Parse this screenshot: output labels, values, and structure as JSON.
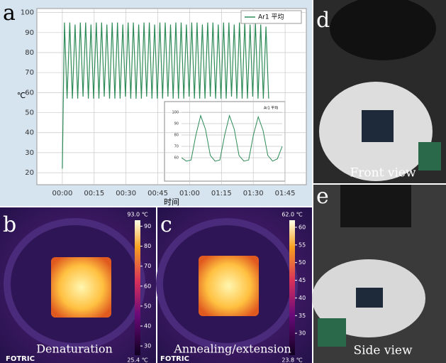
{
  "panel_labels": [
    "a",
    "b",
    "c",
    "d",
    "e"
  ],
  "chart_data": [
    {
      "type": "line",
      "ylabel": "℃",
      "xlabel": "时间",
      "x": [
        0,
        0.5,
        1,
        2.25,
        3.5,
        4.75,
        6,
        7.25,
        8.5,
        9.75,
        11,
        12.25,
        13.5,
        14.75,
        16,
        17.25,
        18.5,
        19.75,
        21,
        22.25,
        23.5,
        24.75,
        26,
        27.25,
        28.5,
        29.75,
        31,
        32.25,
        33.5,
        34.75,
        36,
        37.25,
        38.5,
        39.75,
        41,
        42.25,
        43.5,
        44.75,
        46,
        47.25,
        48.5,
        49.75,
        51,
        52.25,
        53.5,
        54.75,
        56,
        57.25,
        58.5,
        59.75,
        61,
        62.25,
        63.5,
        64.75,
        66,
        67.25,
        68.5,
        69.75,
        71,
        72.25,
        73.5,
        74.75,
        76,
        77.25,
        78.5,
        79.75,
        81,
        82.25,
        83.5,
        84.75,
        86,
        87.25,
        88.5,
        89.75,
        91,
        92.25,
        93.5,
        94.75,
        96,
        97.25
      ],
      "series": [
        {
          "name": "Ar1 平均",
          "color": "#2e8b57",
          "values": [
            22,
            60,
            95,
            57,
            95,
            57,
            94,
            57,
            95,
            58,
            95,
            57,
            94,
            57,
            95,
            57,
            95,
            58,
            94,
            57,
            95,
            57,
            95,
            57,
            94,
            58,
            95,
            57,
            95,
            57,
            94,
            57,
            95,
            58,
            95,
            57,
            94,
            57,
            95,
            57,
            95,
            58,
            94,
            57,
            95,
            57,
            95,
            57,
            94,
            58,
            95,
            57,
            95,
            57,
            94,
            57,
            95,
            58,
            95,
            57,
            94,
            57,
            95,
            57,
            95,
            58,
            94,
            57,
            95,
            57,
            95,
            57,
            94,
            58,
            95,
            57,
            94,
            57,
            93,
            57
          ]
        }
      ],
      "xlim": [
        -12,
        115
      ],
      "ylim": [
        14,
        102
      ],
      "xticks": [
        {
          "value": 0,
          "label": "00:00"
        },
        {
          "value": 15,
          "label": "00:15"
        },
        {
          "value": 30,
          "label": "00:30"
        },
        {
          "value": 45,
          "label": "00:45"
        },
        {
          "value": 60,
          "label": "01:00"
        },
        {
          "value": 75,
          "label": "01:15"
        },
        {
          "value": 90,
          "label": "01:30"
        },
        {
          "value": 105,
          "label": "01:45"
        }
      ],
      "yticks": [
        20,
        30,
        40,
        50,
        60,
        70,
        80,
        90,
        100
      ],
      "grid": true,
      "legend": "top-right"
    },
    {
      "type": "line",
      "x": [
        0,
        1,
        2,
        3,
        4,
        5,
        6,
        7,
        8,
        9,
        10,
        11,
        12,
        13,
        14,
        15,
        16,
        17,
        18,
        19,
        20,
        21
      ],
      "series": [
        {
          "name": "Ar1 平均",
          "color": "#2e8b57",
          "values": [
            60,
            57,
            58,
            80,
            97,
            85,
            62,
            57,
            58,
            80,
            97,
            85,
            62,
            57,
            58,
            80,
            96,
            84,
            62,
            57,
            59,
            70
          ]
        }
      ],
      "xlim": [
        0,
        21
      ],
      "ylim": [
        50,
        105
      ],
      "yticks": [
        60,
        70,
        80,
        90,
        100
      ],
      "grid": true
    }
  ],
  "thermal": [
    {
      "caption": "Denaturation",
      "brand": "FOTRIC",
      "max": {
        "value": 93.0,
        "label": "93.0 ℃"
      },
      "min": {
        "value": 25.4,
        "label": "25.4 ℃"
      },
      "ticks": [
        30,
        40,
        50,
        60,
        70,
        80,
        90
      ]
    },
    {
      "caption": "Annealing/extension",
      "brand": "FOTRIC",
      "max": {
        "value": 62.0,
        "label": "62.0 ℃"
      },
      "min": {
        "value": 23.8,
        "label": "23.8 ℃"
      },
      "ticks": [
        30,
        35,
        40,
        45,
        50,
        55,
        60
      ]
    }
  ],
  "photos": [
    {
      "caption": "Front view"
    },
    {
      "caption": "Side view"
    }
  ]
}
